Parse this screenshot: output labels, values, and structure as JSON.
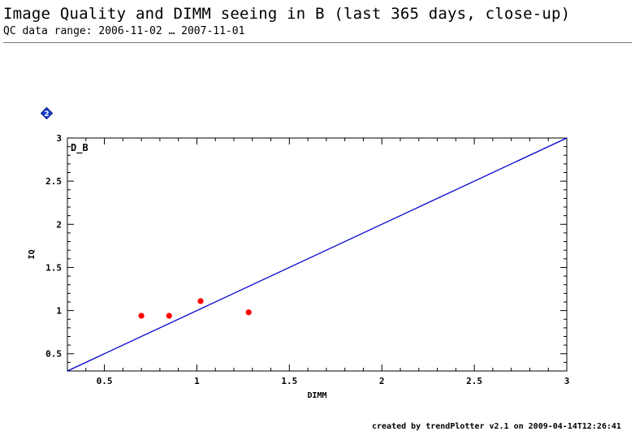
{
  "header": {
    "title": "Image Quality and DIMM seeing in B (last 365 days, close-up)",
    "subtitle": "QC data range: 2006-11-02 … 2007-11-01"
  },
  "help_icon": {
    "glyph": "2",
    "color": "#1a3fd0"
  },
  "footer": {
    "text": "created by trendPlotter v2.1 on 2009-04-14T12:26:41"
  },
  "chart_data": {
    "type": "scatter",
    "panel_label": "D_B",
    "xlabel": "DIMM",
    "ylabel": "IQ",
    "xlim": [
      0.3,
      3.0
    ],
    "ylim": [
      0.3,
      3.0
    ],
    "x_ticks": [
      0.5,
      1,
      1.5,
      2,
      2.5,
      3
    ],
    "x_tick_labels": [
      "0.5",
      "1",
      "1.5",
      "2",
      "2.5",
      "3"
    ],
    "y_ticks": [
      0.5,
      1,
      1.5,
      2,
      2.5,
      3
    ],
    "y_tick_labels": [
      "0.5",
      "1",
      "1.5",
      "2",
      "2.5",
      "3"
    ],
    "grid": false,
    "series": [
      {
        "points": [
          {
            "x": 0.7,
            "y": 0.94
          },
          {
            "x": 0.85,
            "y": 0.94
          },
          {
            "x": 1.02,
            "y": 1.11
          },
          {
            "x": 1.28,
            "y": 0.98
          }
        ],
        "color": "#ff0000"
      }
    ],
    "reference_line": {
      "from": [
        0.3,
        0.3
      ],
      "to": [
        3.0,
        3.0
      ],
      "color": "#0000cc"
    }
  }
}
